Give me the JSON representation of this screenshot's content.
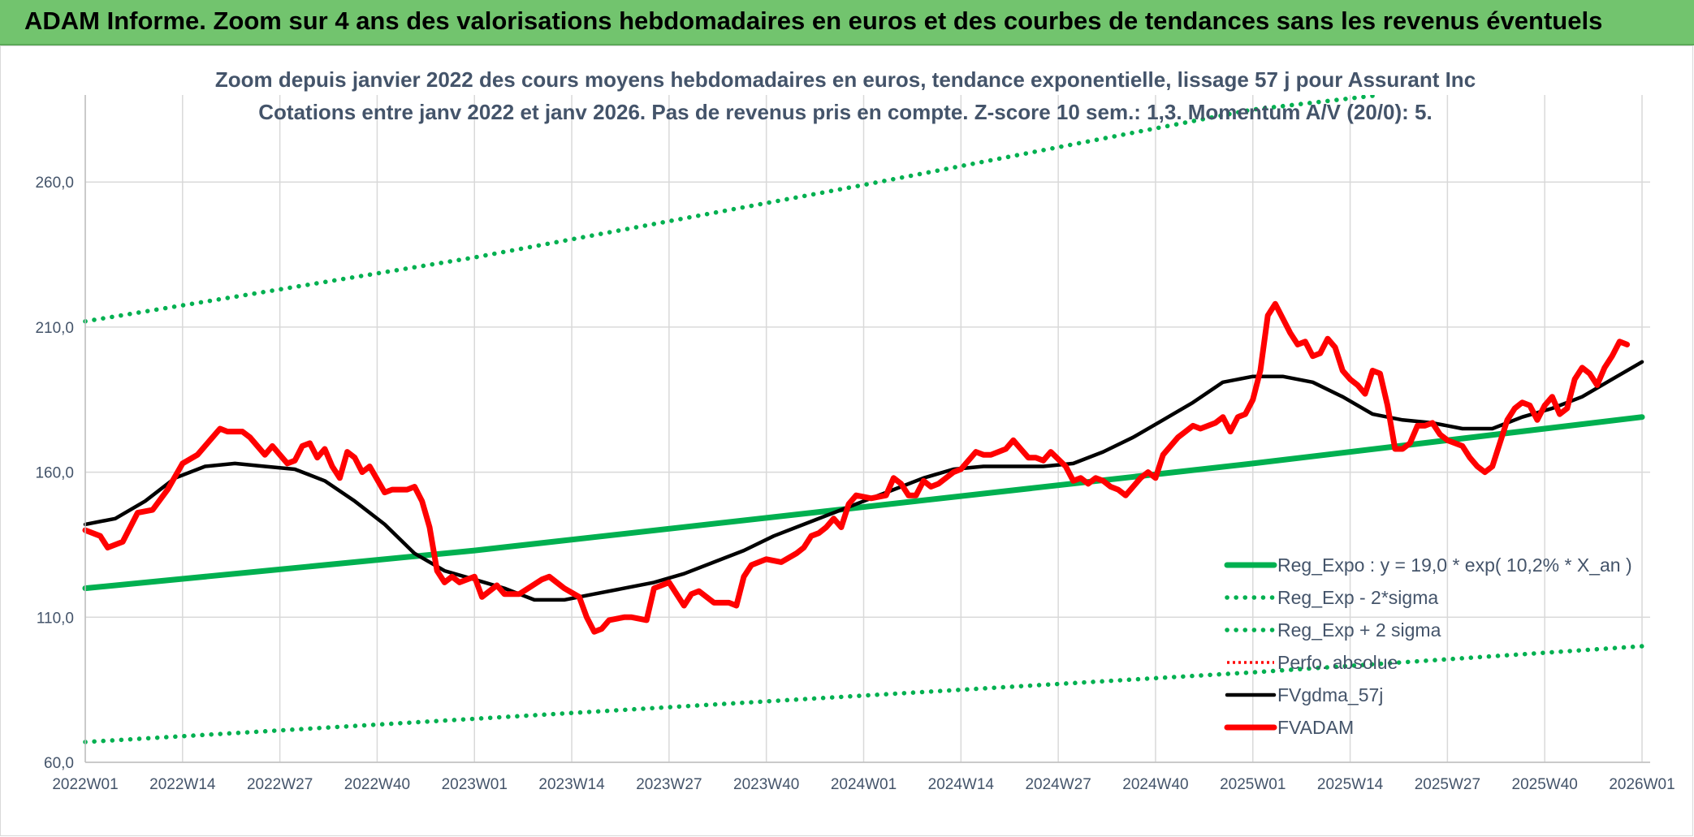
{
  "header": {
    "title": "ADAM Informe. Zoom sur 4 ans des valorisations hebdomadaires en euros et des courbes de tendances sans les revenus éventuels"
  },
  "colors": {
    "header_bg": "#72c46e",
    "green": "#00b050",
    "red": "#ff0000",
    "black": "#000000",
    "grid": "#d9d9d9",
    "text": "#44546a"
  },
  "chart_data": {
    "type": "line",
    "title": "Zoom depuis janvier 2022 des cours moyens hebdomadaires en euros, tendance exponentielle, lissage 57 j pour Assurant Inc",
    "subtitle": "Cotations entre janv 2022 et janv 2026. Pas de revenus pris en compte. Z-score 10 sem.: 1,3. Momentum A/V (20/0): 5.",
    "xlabel": "",
    "ylabel": "",
    "ylim": [
      60,
      290
    ],
    "yticks": [
      60,
      110,
      160,
      210,
      260
    ],
    "ytick_labels": [
      "60,0",
      "110,0",
      "160,0",
      "210,0",
      "260,0"
    ],
    "x_range": [
      0,
      209
    ],
    "xticks": [
      0,
      13,
      26,
      39,
      52,
      65,
      78,
      91,
      104,
      117,
      130,
      143,
      156,
      169,
      182,
      195,
      208
    ],
    "xtick_labels": [
      "2022W01",
      "2022W14",
      "2022W27",
      "2022W40",
      "2023W01",
      "2023W14",
      "2023W27",
      "2023W40",
      "2024W01",
      "2024W14",
      "2024W27",
      "2024W40",
      "2025W01",
      "2025W14",
      "2025W27",
      "2025W40",
      "2026W01"
    ],
    "series": [
      {
        "name": "Reg_Expo : y = 19,0 * exp( 10,2% *  X_an )",
        "style": "solid-thick",
        "color": "#00b050",
        "points": [
          [
            0,
            120
          ],
          [
            52,
            133
          ],
          [
            104,
            148
          ],
          [
            156,
            163
          ],
          [
            208,
            179
          ]
        ]
      },
      {
        "name": "Reg_Exp - 2*sigma",
        "style": "dotted",
        "color": "#00b050",
        "points": [
          [
            0,
            67
          ],
          [
            52,
            75
          ],
          [
            104,
            83
          ],
          [
            156,
            91
          ],
          [
            208,
            100
          ]
        ]
      },
      {
        "name": "Reg_Exp + 2 sigma",
        "style": "dotted",
        "color": "#00b050",
        "points": [
          [
            0,
            212
          ],
          [
            52,
            234
          ],
          [
            104,
            259
          ],
          [
            156,
            285
          ],
          [
            173,
            290
          ]
        ]
      },
      {
        "name": "Perfo. absolue",
        "style": "dotted-line",
        "color": "#ff0000",
        "points": []
      },
      {
        "name": "FVgdma_57j",
        "style": "solid",
        "color": "#000000",
        "points": [
          [
            0,
            142
          ],
          [
            4,
            144
          ],
          [
            8,
            150
          ],
          [
            12,
            158
          ],
          [
            16,
            162
          ],
          [
            20,
            163
          ],
          [
            24,
            162
          ],
          [
            28,
            161
          ],
          [
            32,
            157
          ],
          [
            36,
            150
          ],
          [
            40,
            142
          ],
          [
            44,
            132
          ],
          [
            48,
            126
          ],
          [
            52,
            123
          ],
          [
            56,
            120
          ],
          [
            60,
            116
          ],
          [
            64,
            116
          ],
          [
            68,
            118
          ],
          [
            72,
            120
          ],
          [
            76,
            122
          ],
          [
            80,
            125
          ],
          [
            84,
            129
          ],
          [
            88,
            133
          ],
          [
            92,
            138
          ],
          [
            96,
            142
          ],
          [
            100,
            146
          ],
          [
            104,
            150
          ],
          [
            108,
            154
          ],
          [
            112,
            158
          ],
          [
            116,
            161
          ],
          [
            120,
            162
          ],
          [
            124,
            162
          ],
          [
            128,
            162
          ],
          [
            132,
            163
          ],
          [
            136,
            167
          ],
          [
            140,
            172
          ],
          [
            144,
            178
          ],
          [
            148,
            184
          ],
          [
            152,
            191
          ],
          [
            156,
            193
          ],
          [
            160,
            193
          ],
          [
            164,
            191
          ],
          [
            168,
            186
          ],
          [
            172,
            180
          ],
          [
            176,
            178
          ],
          [
            180,
            177
          ],
          [
            184,
            175
          ],
          [
            188,
            175
          ],
          [
            192,
            179
          ],
          [
            196,
            182
          ],
          [
            200,
            186
          ],
          [
            204,
            192
          ],
          [
            208,
            198
          ]
        ]
      },
      {
        "name": "FVADAM",
        "style": "solid-thick",
        "color": "#ff0000",
        "points": [
          [
            0,
            140
          ],
          [
            2,
            138
          ],
          [
            3,
            134
          ],
          [
            5,
            136
          ],
          [
            7,
            146
          ],
          [
            9,
            147
          ],
          [
            11,
            154
          ],
          [
            13,
            163
          ],
          [
            15,
            166
          ],
          [
            17,
            172
          ],
          [
            18,
            175
          ],
          [
            19,
            174
          ],
          [
            21,
            174
          ],
          [
            22,
            172
          ],
          [
            24,
            166
          ],
          [
            25,
            169
          ],
          [
            27,
            163
          ],
          [
            28,
            164
          ],
          [
            29,
            169
          ],
          [
            30,
            170
          ],
          [
            31,
            165
          ],
          [
            32,
            168
          ],
          [
            33,
            162
          ],
          [
            34,
            158
          ],
          [
            35,
            167
          ],
          [
            36,
            165
          ],
          [
            37,
            160
          ],
          [
            38,
            162
          ],
          [
            40,
            153
          ],
          [
            41,
            154
          ],
          [
            43,
            154
          ],
          [
            44,
            155
          ],
          [
            45,
            150
          ],
          [
            46,
            141
          ],
          [
            47,
            126
          ],
          [
            48,
            122
          ],
          [
            49,
            124
          ],
          [
            50,
            122
          ],
          [
            52,
            124
          ],
          [
            53,
            117
          ],
          [
            55,
            121
          ],
          [
            56,
            118
          ],
          [
            58,
            118
          ],
          [
            61,
            123
          ],
          [
            62,
            124
          ],
          [
            64,
            120
          ],
          [
            66,
            117
          ],
          [
            67,
            110
          ],
          [
            68,
            105
          ],
          [
            69,
            106
          ],
          [
            70,
            109
          ],
          [
            72,
            110
          ],
          [
            73,
            110
          ],
          [
            75,
            109
          ],
          [
            76,
            120
          ],
          [
            77,
            121
          ],
          [
            78,
            122
          ],
          [
            79,
            118
          ],
          [
            80,
            114
          ],
          [
            81,
            118
          ],
          [
            82,
            119
          ],
          [
            84,
            115
          ],
          [
            86,
            115
          ],
          [
            87,
            114
          ],
          [
            88,
            124
          ],
          [
            89,
            128
          ],
          [
            91,
            130
          ],
          [
            93,
            129
          ],
          [
            95,
            132
          ],
          [
            96,
            134
          ],
          [
            97,
            138
          ],
          [
            98,
            139
          ],
          [
            99,
            141
          ],
          [
            100,
            144
          ],
          [
            101,
            141
          ],
          [
            102,
            149
          ],
          [
            103,
            152
          ],
          [
            105,
            151
          ],
          [
            107,
            152
          ],
          [
            108,
            158
          ],
          [
            109,
            156
          ],
          [
            110,
            152
          ],
          [
            111,
            152
          ],
          [
            112,
            157
          ],
          [
            113,
            155
          ],
          [
            114,
            156
          ],
          [
            116,
            160
          ],
          [
            117,
            161
          ],
          [
            119,
            167
          ],
          [
            120,
            166
          ],
          [
            121,
            166
          ],
          [
            123,
            168
          ],
          [
            124,
            171
          ],
          [
            125,
            168
          ],
          [
            126,
            165
          ],
          [
            127,
            165
          ],
          [
            128,
            164
          ],
          [
            129,
            167
          ],
          [
            131,
            162
          ],
          [
            132,
            157
          ],
          [
            133,
            158
          ],
          [
            134,
            156
          ],
          [
            135,
            158
          ],
          [
            136,
            157
          ],
          [
            137,
            155
          ],
          [
            138,
            154
          ],
          [
            139,
            152
          ],
          [
            141,
            158
          ],
          [
            142,
            160
          ],
          [
            143,
            158
          ],
          [
            144,
            166
          ],
          [
            146,
            172
          ],
          [
            147,
            174
          ],
          [
            148,
            176
          ],
          [
            149,
            175
          ],
          [
            151,
            177
          ],
          [
            152,
            179
          ],
          [
            153,
            174
          ],
          [
            154,
            179
          ],
          [
            155,
            180
          ],
          [
            156,
            185
          ],
          [
            157,
            195
          ],
          [
            158,
            214
          ],
          [
            159,
            218
          ],
          [
            160,
            213
          ],
          [
            161,
            208
          ],
          [
            162,
            204
          ],
          [
            163,
            205
          ],
          [
            164,
            200
          ],
          [
            165,
            201
          ],
          [
            166,
            206
          ],
          [
            167,
            203
          ],
          [
            168,
            195
          ],
          [
            169,
            192
          ],
          [
            170,
            190
          ],
          [
            171,
            187
          ],
          [
            172,
            195
          ],
          [
            173,
            194
          ],
          [
            174,
            183
          ],
          [
            175,
            168
          ],
          [
            176,
            168
          ],
          [
            177,
            170
          ],
          [
            178,
            176
          ],
          [
            179,
            176
          ],
          [
            180,
            177
          ],
          [
            181,
            173
          ],
          [
            182,
            171
          ],
          [
            184,
            169
          ],
          [
            185,
            165
          ],
          [
            186,
            162
          ],
          [
            187,
            160
          ],
          [
            188,
            162
          ],
          [
            190,
            178
          ],
          [
            191,
            182
          ],
          [
            192,
            184
          ],
          [
            193,
            183
          ],
          [
            194,
            178
          ],
          [
            195,
            183
          ],
          [
            196,
            186
          ],
          [
            197,
            180
          ],
          [
            198,
            182
          ],
          [
            199,
            192
          ],
          [
            200,
            196
          ],
          [
            201,
            194
          ],
          [
            202,
            190
          ],
          [
            203,
            196
          ],
          [
            204,
            200
          ],
          [
            205,
            205
          ],
          [
            206,
            204
          ]
        ]
      }
    ],
    "legend_position": "bottom-right"
  }
}
